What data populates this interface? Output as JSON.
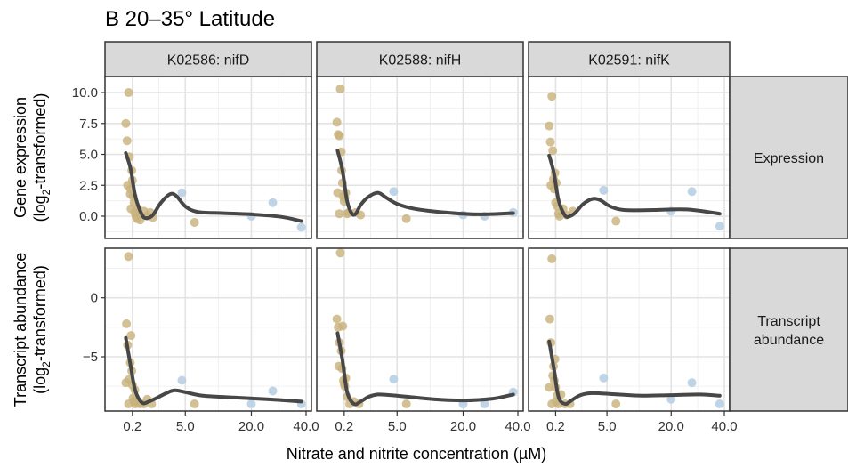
{
  "figure": {
    "title": "B  20–35° Latitude",
    "xlabel": "Nitrate and nitrite concentration (µM)",
    "ylabel_rows": [
      {
        "line1": "Gene expression",
        "line2_pre": "(log",
        "line2_sub": "2",
        "line2_post": "-transformed)"
      },
      {
        "line1": "Transcript abundance",
        "line2_pre": "(log",
        "line2_sub": "2",
        "line2_post": "-transformed)"
      }
    ],
    "colors": {
      "panel_bg": "#ffffff",
      "grid_major": "#e3e3e3",
      "grid_minor": "#f0f0f0",
      "strip_bg": "#d9d9d9",
      "border": "#333333",
      "point_low": "#c8b27a",
      "point_high": "#b9cfe6",
      "smooth": "#474747"
    }
  },
  "chart_data": {
    "type": "scatter",
    "x_scale": "sqrt",
    "xlim": [
      0,
      40
    ],
    "x_ticks": [
      0.2,
      5.0,
      20.0,
      40.0
    ],
    "x_tick_labels": [
      "0.2",
      "5.0",
      "20.0",
      "40.0"
    ],
    "columns": [
      "K02586: nifD",
      "K02588: nifH",
      "K02591: nifK"
    ],
    "rows": [
      {
        "label": "Expression",
        "ylim": [
          -1.8,
          11.3
        ],
        "y_ticks": [
          0,
          2.5,
          5,
          7.5,
          10
        ],
        "y_tick_labels": [
          "0.0",
          "2.5",
          "5.0",
          "7.5",
          "10.0"
        ]
      },
      {
        "label": "Transcript abundance",
        "label_lines": [
          "Transcript",
          "abundance"
        ],
        "ylim": [
          -9.6,
          4.2
        ],
        "y_ticks": [
          -5,
          0
        ],
        "y_tick_labels": [
          "−5",
          "0"
        ]
      }
    ],
    "panels": [
      {
        "row": 0,
        "col": 0,
        "points_low": [
          [
            0.05,
            7.5
          ],
          [
            0.07,
            6.1
          ],
          [
            0.08,
            2.5
          ],
          [
            0.1,
            10.0
          ],
          [
            0.12,
            4.8
          ],
          [
            0.14,
            1.8
          ],
          [
            0.15,
            2.2
          ],
          [
            0.16,
            0.6
          ],
          [
            0.18,
            3.7
          ],
          [
            0.2,
            2.9
          ],
          [
            0.22,
            1.6
          ],
          [
            0.25,
            1.1
          ],
          [
            0.28,
            0.3
          ],
          [
            0.32,
            0.0
          ],
          [
            0.36,
            -0.2
          ],
          [
            0.4,
            0.6
          ],
          [
            0.5,
            -0.3
          ],
          [
            0.7,
            0.4
          ],
          [
            0.9,
            0.0
          ],
          [
            1.1,
            0.3
          ],
          [
            1.3,
            -0.1
          ],
          [
            6.5,
            -0.5
          ]
        ],
        "points_high": [
          [
            4.5,
            1.9
          ],
          [
            20.0,
            0.0
          ],
          [
            27.0,
            1.1
          ],
          [
            38.0,
            -0.9
          ]
        ],
        "smooth": [
          [
            0.05,
            5.1
          ],
          [
            0.15,
            3.8
          ],
          [
            0.3,
            1.6
          ],
          [
            0.6,
            0.1
          ],
          [
            0.9,
            -0.15
          ],
          [
            1.3,
            0.1
          ],
          [
            2.0,
            1.1
          ],
          [
            3.0,
            1.8
          ],
          [
            3.8,
            1.6
          ],
          [
            5.0,
            0.8
          ],
          [
            7.0,
            0.35
          ],
          [
            12.0,
            0.25
          ],
          [
            20.0,
            0.15
          ],
          [
            30.0,
            -0.05
          ],
          [
            38.0,
            -0.4
          ]
        ]
      },
      {
        "row": 0,
        "col": 1,
        "points_low": [
          [
            0.04,
            7.6
          ],
          [
            0.06,
            6.6
          ],
          [
            0.08,
            6.5
          ],
          [
            0.1,
            10.3
          ],
          [
            0.12,
            5.2
          ],
          [
            0.13,
            3.7
          ],
          [
            0.15,
            2.7
          ],
          [
            0.17,
            1.6
          ],
          [
            0.2,
            1.2
          ],
          [
            0.22,
            1.5
          ],
          [
            0.25,
            1.9
          ],
          [
            0.05,
            1.9
          ],
          [
            0.08,
            0.2
          ],
          [
            0.3,
            0.2
          ],
          [
            0.36,
            0.3
          ],
          [
            0.7,
            0.3
          ],
          [
            1.0,
            0.1
          ],
          [
            6.5,
            -0.2
          ]
        ],
        "points_high": [
          [
            4.5,
            2.0
          ],
          [
            20.0,
            0.1
          ],
          [
            27.0,
            0.0
          ],
          [
            38.0,
            0.3
          ]
        ],
        "smooth": [
          [
            0.05,
            5.3
          ],
          [
            0.15,
            3.7
          ],
          [
            0.3,
            1.2
          ],
          [
            0.5,
            0.2
          ],
          [
            0.7,
            0.2
          ],
          [
            1.0,
            0.9
          ],
          [
            1.5,
            1.5
          ],
          [
            2.5,
            1.9
          ],
          [
            3.5,
            1.5
          ],
          [
            5.0,
            1.0
          ],
          [
            8.0,
            0.6
          ],
          [
            15.0,
            0.3
          ],
          [
            25.0,
            0.15
          ],
          [
            38.0,
            0.25
          ]
        ]
      },
      {
        "row": 0,
        "col": 2,
        "points_low": [
          [
            0.05,
            7.3
          ],
          [
            0.07,
            6.0
          ],
          [
            0.08,
            2.5
          ],
          [
            0.1,
            9.7
          ],
          [
            0.12,
            5.3
          ],
          [
            0.14,
            3.0
          ],
          [
            0.16,
            2.2
          ],
          [
            0.18,
            3.5
          ],
          [
            0.2,
            1.1
          ],
          [
            0.22,
            2.7
          ],
          [
            0.26,
            0.8
          ],
          [
            0.3,
            0.2
          ],
          [
            0.34,
            0.0
          ],
          [
            0.5,
            0.6
          ],
          [
            0.7,
            0.1
          ],
          [
            1.1,
            0.4
          ],
          [
            6.5,
            -0.4
          ]
        ],
        "points_high": [
          [
            4.5,
            2.1
          ],
          [
            20.0,
            0.4
          ],
          [
            27.0,
            2.0
          ],
          [
            38.0,
            -0.8
          ]
        ],
        "smooth": [
          [
            0.05,
            4.9
          ],
          [
            0.15,
            3.5
          ],
          [
            0.3,
            1.3
          ],
          [
            0.6,
            0.05
          ],
          [
            0.9,
            0.0
          ],
          [
            1.3,
            0.3
          ],
          [
            2.0,
            1.0
          ],
          [
            3.0,
            1.4
          ],
          [
            4.0,
            1.3
          ],
          [
            5.5,
            0.8
          ],
          [
            8.0,
            0.5
          ],
          [
            15.0,
            0.5
          ],
          [
            25.0,
            0.55
          ],
          [
            38.0,
            0.2
          ]
        ]
      },
      {
        "row": 1,
        "col": 0,
        "points_low": [
          [
            0.05,
            -7.2
          ],
          [
            0.06,
            -2.2
          ],
          [
            0.08,
            -4.0
          ],
          [
            0.1,
            3.5
          ],
          [
            0.12,
            -6.9
          ],
          [
            0.14,
            -5.5
          ],
          [
            0.16,
            -3.2
          ],
          [
            0.18,
            -6.2
          ],
          [
            0.2,
            -7.4
          ],
          [
            0.22,
            -8.5
          ],
          [
            0.25,
            -8.8
          ],
          [
            0.1,
            -9.0
          ],
          [
            0.28,
            -7.8
          ],
          [
            0.3,
            -9.0
          ],
          [
            0.4,
            -8.9
          ],
          [
            0.5,
            -9.0
          ],
          [
            0.7,
            -9.0
          ],
          [
            0.9,
            -8.6
          ],
          [
            1.2,
            -9.0
          ],
          [
            6.5,
            -9.0
          ]
        ],
        "points_high": [
          [
            4.5,
            -7.0
          ],
          [
            20.0,
            -9.0
          ],
          [
            27.0,
            -7.9
          ],
          [
            38.0,
            -9.0
          ]
        ],
        "smooth": [
          [
            0.05,
            -3.4
          ],
          [
            0.15,
            -5.8
          ],
          [
            0.3,
            -7.9
          ],
          [
            0.6,
            -8.9
          ],
          [
            1.0,
            -8.8
          ],
          [
            1.6,
            -8.5
          ],
          [
            2.5,
            -8.1
          ],
          [
            3.5,
            -7.85
          ],
          [
            5.0,
            -8.0
          ],
          [
            8.0,
            -8.3
          ],
          [
            15.0,
            -8.45
          ],
          [
            25.0,
            -8.6
          ],
          [
            38.0,
            -8.8
          ]
        ]
      },
      {
        "row": 1,
        "col": 1,
        "points_low": [
          [
            0.04,
            -1.8
          ],
          [
            0.06,
            -2.5
          ],
          [
            0.08,
            -3.8
          ],
          [
            0.1,
            3.8
          ],
          [
            0.12,
            -4.5
          ],
          [
            0.14,
            -6.0
          ],
          [
            0.16,
            -2.4
          ],
          [
            0.18,
            -7.0
          ],
          [
            0.2,
            -7.3
          ],
          [
            0.22,
            -7.5
          ],
          [
            0.25,
            -6.8
          ],
          [
            0.07,
            -5.8
          ],
          [
            0.3,
            -8.4
          ],
          [
            0.4,
            -9.0
          ],
          [
            0.6,
            -8.8
          ],
          [
            0.9,
            -9.0
          ],
          [
            6.5,
            -9.0
          ]
        ],
        "points_high": [
          [
            4.5,
            -6.9
          ],
          [
            20.0,
            -9.0
          ],
          [
            27.0,
            -9.0
          ],
          [
            38.0,
            -8.0
          ]
        ],
        "smooth": [
          [
            0.05,
            -3.0
          ],
          [
            0.15,
            -5.3
          ],
          [
            0.3,
            -8.0
          ],
          [
            0.6,
            -9.0
          ],
          [
            1.0,
            -8.8
          ],
          [
            1.6,
            -8.4
          ],
          [
            2.5,
            -8.2
          ],
          [
            4.0,
            -8.25
          ],
          [
            7.0,
            -8.4
          ],
          [
            12.0,
            -8.6
          ],
          [
            20.0,
            -8.7
          ],
          [
            30.0,
            -8.55
          ],
          [
            38.0,
            -8.2
          ]
        ]
      },
      {
        "row": 1,
        "col": 2,
        "points_low": [
          [
            0.05,
            -7.6
          ],
          [
            0.06,
            -1.8
          ],
          [
            0.08,
            -3.8
          ],
          [
            0.1,
            3.3
          ],
          [
            0.12,
            -6.6
          ],
          [
            0.14,
            -5.8
          ],
          [
            0.16,
            -7.0
          ],
          [
            0.18,
            -5.2
          ],
          [
            0.2,
            -7.6
          ],
          [
            0.22,
            -8.8
          ],
          [
            0.25,
            -8.3
          ],
          [
            0.1,
            -9.0
          ],
          [
            0.3,
            -9.0
          ],
          [
            0.4,
            -8.2
          ],
          [
            0.6,
            -9.0
          ],
          [
            0.9,
            -9.0
          ],
          [
            6.5,
            -9.0
          ]
        ],
        "points_high": [
          [
            4.5,
            -6.8
          ],
          [
            20.0,
            -8.6
          ],
          [
            27.0,
            -7.2
          ],
          [
            38.0,
            -9.0
          ]
        ],
        "smooth": [
          [
            0.05,
            -3.7
          ],
          [
            0.15,
            -6.0
          ],
          [
            0.3,
            -8.4
          ],
          [
            0.6,
            -9.0
          ],
          [
            1.0,
            -8.7
          ],
          [
            1.6,
            -8.3
          ],
          [
            2.5,
            -8.1
          ],
          [
            4.0,
            -8.1
          ],
          [
            7.0,
            -8.2
          ],
          [
            12.0,
            -8.3
          ],
          [
            20.0,
            -8.25
          ],
          [
            30.0,
            -8.2
          ],
          [
            38.0,
            -8.3
          ]
        ]
      }
    ]
  }
}
